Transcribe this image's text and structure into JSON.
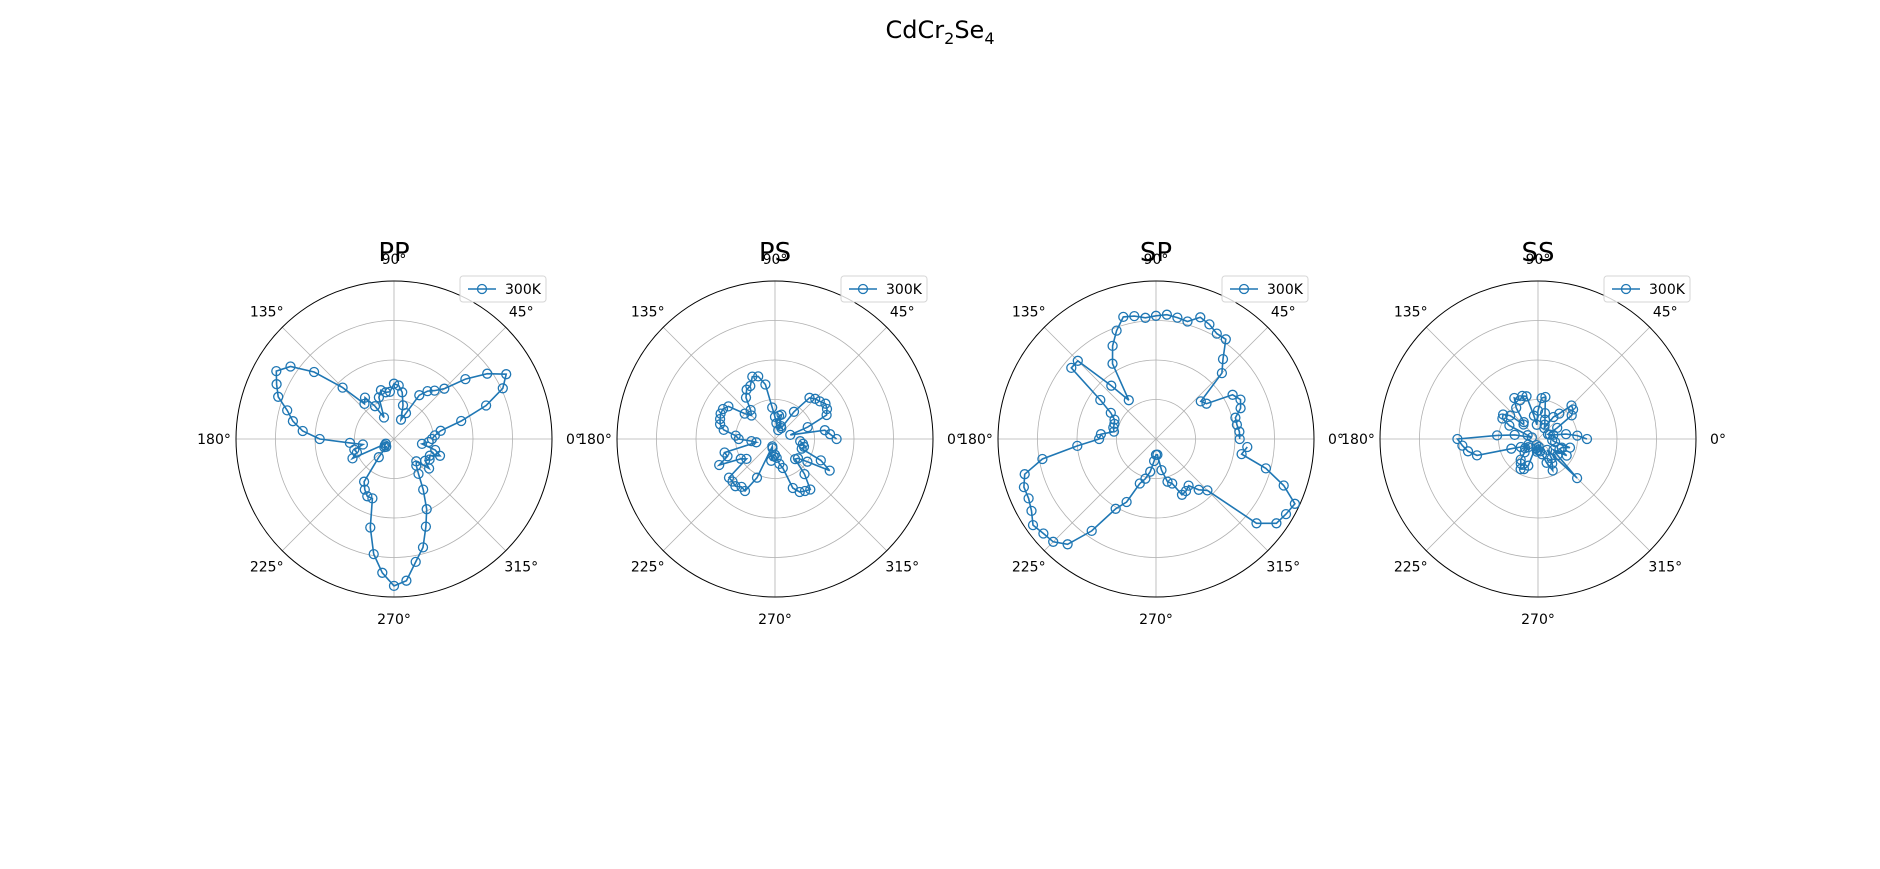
{
  "figure": {
    "title_main": "CdCr",
    "title_sub1": "2",
    "title_mid": "Se",
    "title_sub2": "4"
  },
  "chart_data": [
    {
      "type": "line",
      "projection": "polar",
      "title": "PP",
      "angle_unit": "deg",
      "theta_ticks": [
        "0°",
        "45°",
        "90°",
        "135°",
        "180°",
        "225°",
        "270°",
        "315°"
      ],
      "radial_grid_fractions": [
        0.25,
        0.5,
        0.75,
        1.0
      ],
      "radial_tick_labels": "none",
      "legend_position": "top-right",
      "series": [
        {
          "name": "300K",
          "color": "#1f77b4",
          "marker": "open-circle",
          "theta": [
            0,
            5,
            10,
            15,
            20,
            25,
            30,
            35,
            40,
            45,
            50,
            55,
            60,
            65,
            70,
            75,
            80,
            85,
            90,
            95,
            100,
            105,
            110,
            115,
            120,
            125,
            130,
            135,
            140,
            145,
            150,
            155,
            160,
            165,
            170,
            175,
            180,
            185,
            190,
            195,
            200,
            205,
            210,
            215,
            220,
            225,
            230,
            235,
            240,
            245,
            250,
            255,
            260,
            265,
            270,
            275,
            280,
            285,
            290,
            295,
            300,
            305,
            310,
            315,
            320,
            325,
            330,
            335,
            340,
            345,
            350,
            355
          ],
          "r": [
            0.24,
            0.26,
            0.3,
            0.44,
            0.62,
            0.76,
            0.82,
            0.72,
            0.59,
            0.45,
            0.4,
            0.37,
            0.32,
            0.18,
            0.13,
            0.22,
            0.3,
            0.34,
            0.35,
            0.3,
            0.3,
            0.32,
            0.28,
            0.15,
            0.24,
            0.32,
            0.29,
            0.46,
            0.66,
            0.8,
            0.86,
            0.82,
            0.78,
            0.7,
            0.65,
            0.58,
            0.47,
            0.28,
            0.2,
            0.26,
            0.25,
            0.29,
            0.06,
            0.07,
            0.08,
            0.07,
            0.15,
            0.33,
            0.37,
            0.4,
            0.4,
            0.58,
            0.74,
            0.85,
            0.93,
            0.9,
            0.79,
            0.71,
            0.59,
            0.49,
            0.37,
            0.27,
            0.22,
            0.2,
            0.29,
            0.24,
            0.26,
            0.25,
            0.31,
            0.27,
            0.18,
            0.22
          ]
        }
      ]
    },
    {
      "type": "line",
      "projection": "polar",
      "title": "PS",
      "angle_unit": "deg",
      "theta_ticks": [
        "0°",
        "45°",
        "90°",
        "135°",
        "180°",
        "225°",
        "270°",
        "315°"
      ],
      "radial_grid_fractions": [
        0.25,
        0.5,
        0.75,
        1.0
      ],
      "radial_tick_labels": "none",
      "legend_position": "top-right",
      "series": [
        {
          "name": "300K",
          "color": "#1f77b4",
          "marker": "open-circle",
          "theta": [
            0,
            5,
            10,
            15,
            20,
            25,
            30,
            35,
            40,
            45,
            50,
            55,
            60,
            65,
            70,
            75,
            80,
            85,
            90,
            95,
            100,
            105,
            110,
            115,
            120,
            125,
            130,
            135,
            140,
            145,
            150,
            155,
            160,
            165,
            170,
            175,
            180,
            185,
            190,
            195,
            200,
            205,
            210,
            215,
            220,
            225,
            230,
            235,
            240,
            245,
            250,
            255,
            260,
            265,
            270,
            275,
            280,
            285,
            290,
            295,
            300,
            305,
            310,
            315,
            320,
            325,
            330,
            335,
            340,
            345,
            350,
            355
          ],
          "r": [
            0.39,
            0.35,
            0.32,
            0.1,
            0.22,
            0.36,
            0.38,
            0.39,
            0.37,
            0.36,
            0.34,
            0.21,
            0.08,
            0.09,
            0.06,
            0.16,
            0.15,
            0.1,
            0.14,
            0.2,
            0.35,
            0.41,
            0.42,
            0.37,
            0.36,
            0.32,
            0.24,
            0.21,
            0.25,
            0.36,
            0.38,
            0.38,
            0.37,
            0.36,
            0.33,
            0.25,
            0.23,
            0.15,
            0.12,
            0.33,
            0.32,
            0.39,
            0.25,
            0.22,
            0.38,
            0.38,
            0.39,
            0.37,
            0.38,
            0.27,
            0.05,
            0.06,
            0.14,
            0.11,
            0.1,
            0.12,
            0.16,
            0.19,
            0.33,
            0.37,
            0.38,
            0.39,
            0.29,
            0.18,
            0.19,
            0.25,
            0.4,
            0.32,
            0.18,
            0.19,
            0.18,
            0.16
          ]
        }
      ]
    },
    {
      "type": "line",
      "projection": "polar",
      "title": "SP",
      "angle_unit": "deg",
      "theta_ticks": [
        "0°",
        "45°",
        "90°",
        "135°",
        "180°",
        "225°",
        "270°",
        "315°"
      ],
      "radial_grid_fractions": [
        0.25,
        0.5,
        0.75,
        1.0
      ],
      "radial_tick_labels": "none",
      "legend_position": "top-right",
      "series": [
        {
          "name": "300K",
          "color": "#1f77b4",
          "marker": "open-circle",
          "theta": [
            0,
            5,
            10,
            15,
            20,
            25,
            30,
            35,
            40,
            45,
            50,
            55,
            60,
            65,
            70,
            75,
            80,
            85,
            90,
            95,
            100,
            105,
            110,
            115,
            120,
            125,
            130,
            135,
            140,
            145,
            150,
            155,
            160,
            165,
            170,
            175,
            180,
            185,
            190,
            195,
            200,
            205,
            210,
            215,
            220,
            225,
            230,
            235,
            240,
            245,
            250,
            255,
            260,
            265,
            270,
            275,
            280,
            285,
            290,
            295,
            300,
            305,
            310,
            315,
            320,
            325,
            330,
            335,
            340,
            345,
            350,
            355
          ],
          "r": [
            0.53,
            0.53,
            0.52,
            0.52,
            0.57,
            0.59,
            0.56,
            0.39,
            0.37,
            0.59,
            0.66,
            0.77,
            0.77,
            0.8,
            0.82,
            0.77,
            0.78,
            0.79,
            0.78,
            0.77,
            0.79,
            0.8,
            0.73,
            0.65,
            0.55,
            0.3,
            0.44,
            0.7,
            0.7,
            0.43,
            0.33,
            0.29,
            0.28,
            0.28,
            0.27,
            0.35,
            0.36,
            0.5,
            0.73,
            0.86,
            0.89,
            0.89,
            0.91,
            0.95,
            0.93,
            0.92,
            0.87,
            0.71,
            0.51,
            0.44,
            0.3,
            0.26,
            0.21,
            0.14,
            0.1,
            0.1,
            0.2,
            0.28,
            0.3,
            0.39,
            0.38,
            0.36,
            0.42,
            0.46,
            0.83,
            0.93,
            0.95,
            0.97,
            0.86,
            0.72,
            0.55,
            0.58
          ]
        }
      ]
    },
    {
      "type": "line",
      "projection": "polar",
      "title": "SS",
      "angle_unit": "deg",
      "theta_ticks": [
        "0°",
        "45°",
        "90°",
        "135°",
        "180°",
        "225°",
        "270°",
        "315°"
      ],
      "radial_grid_fractions": [
        0.25,
        0.5,
        0.75,
        1.0
      ],
      "radial_tick_labels": "none",
      "legend_position": "top-right",
      "series": [
        {
          "name": "300K",
          "color": "#1f77b4",
          "marker": "open-circle",
          "theta": [
            0,
            5,
            10,
            15,
            20,
            25,
            30,
            35,
            40,
            45,
            50,
            55,
            60,
            65,
            70,
            75,
            80,
            85,
            90,
            95,
            100,
            105,
            110,
            115,
            120,
            125,
            130,
            135,
            140,
            145,
            150,
            155,
            160,
            165,
            170,
            175,
            180,
            185,
            190,
            195,
            200,
            205,
            210,
            215,
            220,
            225,
            230,
            235,
            240,
            245,
            250,
            255,
            260,
            265,
            270,
            275,
            280,
            285,
            290,
            295,
            300,
            305,
            310,
            315,
            320,
            325,
            330,
            335,
            340,
            345,
            350,
            355
          ],
          "r": [
            0.31,
            0.25,
            0.18,
            0.1,
            0.08,
            0.07,
            0.14,
            0.26,
            0.29,
            0.3,
            0.21,
            0.17,
            0.08,
            0.1,
            0.13,
            0.17,
            0.27,
            0.26,
            0.18,
            0.09,
            0.15,
            0.28,
            0.29,
            0.27,
            0.3,
            0.24,
            0.14,
            0.13,
            0.23,
            0.27,
            0.26,
            0.2,
            0.07,
            0.04,
            0.15,
            0.26,
            0.51,
            0.48,
            0.45,
            0.4,
            0.18,
            0.12,
            0.07,
            0.1,
            0.08,
            0.12,
            0.17,
            0.19,
            0.22,
            0.21,
            0.18,
            0.04,
            0.06,
            0.08,
            0.07,
            0.05,
            0.08,
            0.1,
            0.16,
            0.22,
            0.18,
            0.15,
            0.09,
            0.35,
            0.16,
            0.12,
            0.21,
            0.15,
            0.16,
            0.21,
            0.11,
            0.09
          ]
        }
      ]
    }
  ]
}
